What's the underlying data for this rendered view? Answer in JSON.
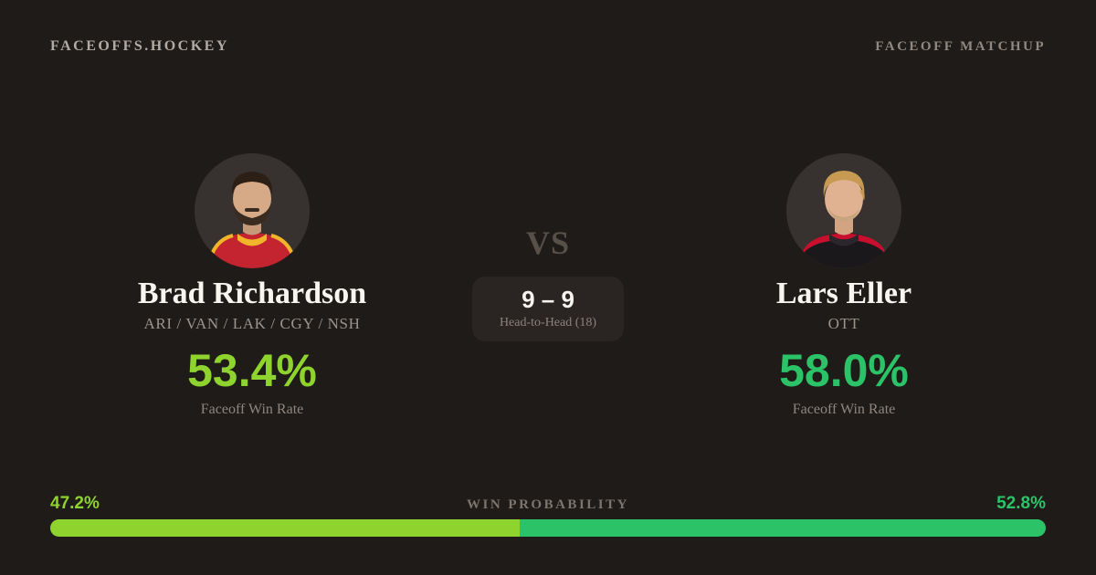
{
  "header": {
    "brand": "FACEOFFS.HOCKEY",
    "page_label": "FACEOFF MATCHUP"
  },
  "players": {
    "left": {
      "name": "Brad Richardson",
      "teams": "ARI / VAN / LAK / CGY / NSH",
      "faceoff_win_rate": "53.4%",
      "stat_label": "Faceoff Win Rate",
      "accent_color": "#8fd32f",
      "avatar": "brad-richardson-headshot"
    },
    "right": {
      "name": "Lars Eller",
      "teams": "OTT",
      "faceoff_win_rate": "58.0%",
      "stat_label": "Faceoff Win Rate",
      "accent_color": "#2cc368",
      "avatar": "lars-eller-headshot"
    }
  },
  "matchup": {
    "vs_label": "VS",
    "head_to_head_score": "9 – 9",
    "head_to_head_label": "Head-to-Head (18)"
  },
  "win_probability": {
    "label": "WIN PROBABILITY",
    "left": {
      "value": 47.2,
      "display": "47.2%",
      "color": "#8fd32f"
    },
    "right": {
      "value": 52.8,
      "display": "52.8%",
      "color": "#2cc368"
    }
  },
  "colors": {
    "background": "#1f1b18",
    "card": "#2a2523",
    "avatar_background": "#37322f",
    "text_primary": "#f6f3ef",
    "text_muted": "#9b948e",
    "text_dim": "#7c756f",
    "vs_text": "#575049"
  }
}
